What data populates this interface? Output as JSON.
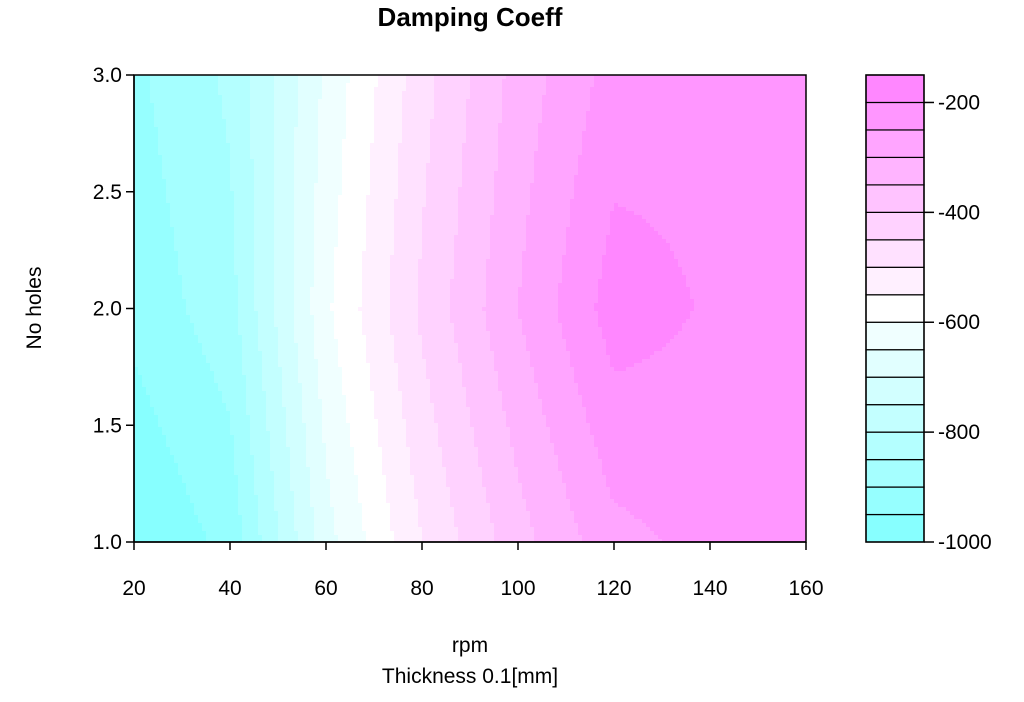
{
  "chart_data": {
    "type": "heatmap",
    "subtype": "filled-contour",
    "title": "Damping Coeff",
    "xlabel": "rpm",
    "xlabel_sub": "Thickness 0.1[mm]",
    "ylabel": "No holes",
    "xlim": [
      20,
      160
    ],
    "ylim": [
      1.0,
      3.0
    ],
    "x_ticks": [
      20,
      40,
      60,
      80,
      100,
      120,
      140,
      160
    ],
    "x_tick_labels": [
      "20",
      "40",
      "60",
      "80",
      "100",
      "120",
      "140",
      "160"
    ],
    "y_ticks": [
      1.0,
      1.5,
      2.0,
      2.5,
      3.0
    ],
    "y_tick_labels": [
      "1.0",
      "1.5",
      "2.0",
      "2.5",
      "3.0"
    ],
    "colorbar": {
      "min": -1000,
      "max": -150,
      "step": 50,
      "tick_values": [
        -1000,
        -800,
        -600,
        -400,
        -200
      ],
      "tick_labels": [
        "-1000",
        "-800",
        "-600",
        "-400",
        "-200"
      ],
      "low_color": "#80ffff",
      "mid_color": "#ffffff",
      "high_color": "#ff80ff"
    },
    "grid": {
      "x": [
        20,
        40,
        60,
        80,
        100,
        120,
        140,
        160
      ],
      "y": [
        1.0,
        2.0,
        3.0
      ],
      "z": [
        [
          -1000,
          -935,
          -670,
          -500,
          -370,
          -265,
          -235,
          -215
        ],
        [
          -935,
          -870,
          -610,
          -440,
          -300,
          -175,
          -205,
          -210
        ],
        [
          -910,
          -840,
          -640,
          -470,
          -330,
          -230,
          -215,
          -205
        ]
      ]
    },
    "grid_lines": false,
    "legend": "colorbar right"
  }
}
